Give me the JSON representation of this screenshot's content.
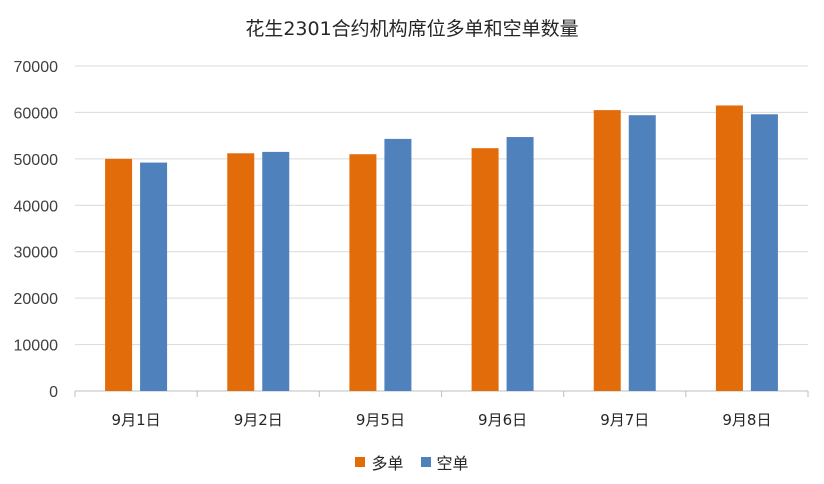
{
  "chart_data": {
    "type": "bar",
    "title": "花生2301合约机构席位多单和空单数量",
    "categories": [
      "9月1日",
      "9月2日",
      "9月5日",
      "9月6日",
      "9月7日",
      "9月8日"
    ],
    "series": [
      {
        "name": "多单",
        "color": "#E36C0A",
        "values": [
          50000,
          51200,
          51000,
          52300,
          60500,
          61500
        ]
      },
      {
        "name": "空单",
        "color": "#4F81BD",
        "values": [
          49200,
          51500,
          54300,
          54700,
          59400,
          59600
        ]
      }
    ],
    "ylim": [
      0,
      70000
    ],
    "yticks": [
      "0",
      "10000",
      "20000",
      "30000",
      "40000",
      "50000",
      "60000",
      "70000"
    ],
    "xlabel": "",
    "ylabel": "",
    "grid": true,
    "legend_position": "bottom"
  }
}
